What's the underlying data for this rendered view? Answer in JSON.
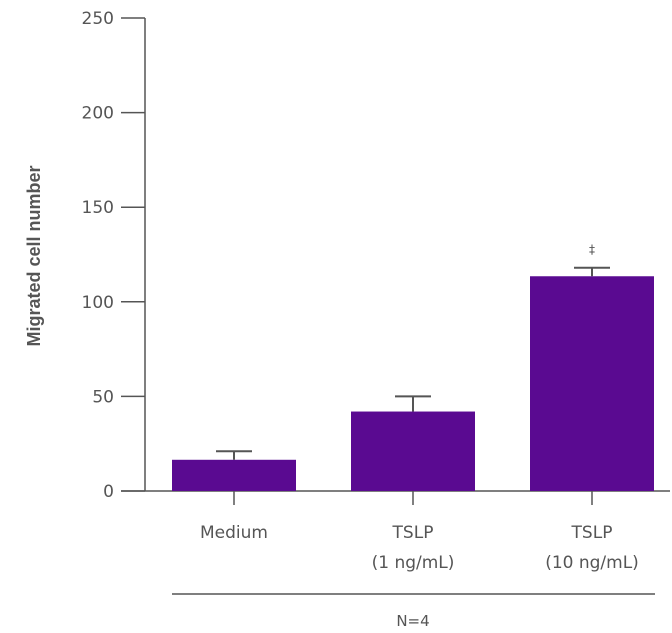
{
  "chart_data": {
    "type": "bar",
    "categories": [
      [
        "Medium"
      ],
      [
        "TSLP",
        "(1 ng/mL)"
      ],
      [
        "TSLP",
        "(10 ng/mL)"
      ]
    ],
    "values": [
      16.5,
      42,
      113.5
    ],
    "errors": [
      4.5,
      8,
      4.5
    ],
    "annotations": [
      "",
      "",
      "‡"
    ],
    "ylabel": "Migrated cell number",
    "xlabel": "",
    "ylim": [
      0,
      250
    ],
    "yticks": [
      0,
      50,
      100,
      150,
      200,
      250
    ],
    "group_label": "N=4",
    "grid": false,
    "colors": {
      "bar": "#5a0a91",
      "axis": "#555555"
    }
  }
}
